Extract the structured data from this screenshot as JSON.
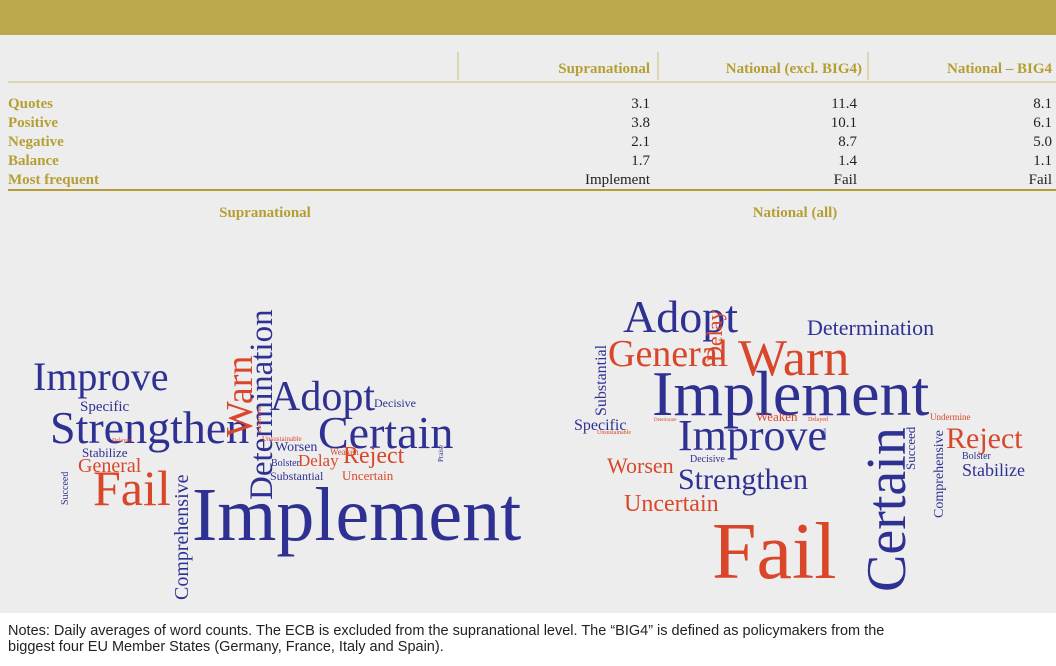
{
  "table": {
    "headers": [
      "Supranational",
      "National (excl. BIG4)",
      "National – BIG4"
    ],
    "rows": [
      [
        "Quotes",
        "3.1",
        "11.4",
        "8.1"
      ],
      [
        "Positive",
        "3.8",
        "10.1",
        "6.1"
      ],
      [
        "Negative",
        "2.1",
        "8.7",
        "5.0"
      ],
      [
        "Balance",
        "1.7",
        "1.4",
        "1.1"
      ],
      [
        "Most frequent",
        "Implement",
        "Fail",
        "Fail"
      ]
    ]
  },
  "clouds": [
    {
      "title": "Supranational",
      "words": [
        "Improve",
        "Specific",
        "Strengthen",
        "Stabilize",
        "General",
        "Fail",
        "Succeed",
        "Comprehensive",
        "Implement",
        "Warn",
        "Determination",
        "Adopt",
        "Decisive",
        "Certain",
        "Unsustainable",
        "Worsen",
        "Bolster",
        "Delay",
        "Reject",
        "Weaken",
        "Substantial",
        "Uncertain",
        "Praise",
        "Delayed",
        "Undermine"
      ]
    },
    {
      "title": "National (all)",
      "words": [
        "Adopt",
        "Delay",
        "Determination",
        "Substantial",
        "General",
        "Warn",
        "Implement",
        "Specific",
        "Unsustainable",
        "Deteriorate",
        "Weaken",
        "Delayed",
        "Undermine",
        "Improve",
        "Certain",
        "Succeed",
        "Comprehensive",
        "Reject",
        "Bolster",
        "Stabilize",
        "Worsen",
        "Decisive",
        "Strengthen",
        "Uncertain",
        "Fail",
        "Praise"
      ]
    }
  ],
  "notes": [
    "Notes: Daily averages of word counts. The ECB is excluded from the supranational level. The “BIG4” is defined as policymakers from the",
    "biggest four EU Member States (Germany, France, Italy and Spain)."
  ]
}
